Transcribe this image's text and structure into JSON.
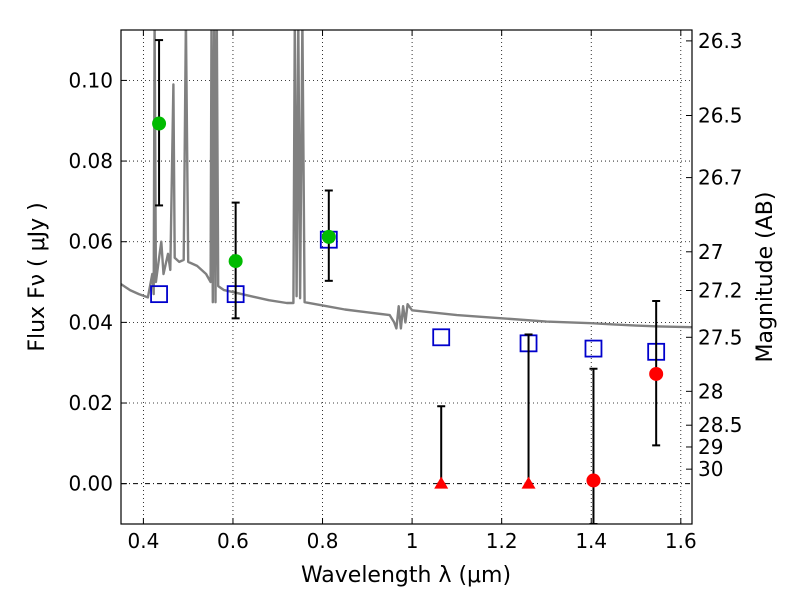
{
  "chart_data": {
    "type": "scatter",
    "xlabel": "Wavelength  λ (μm)",
    "ylabel": "Flux  Fν  ( μJy )",
    "y2label": "Magnitude (AB)",
    "xlim": [
      0.35,
      1.625
    ],
    "ylim": [
      -0.01,
      0.1125
    ],
    "grid": true,
    "x_ticks": [
      0.4,
      0.6,
      0.8,
      1.0,
      1.2,
      1.4,
      1.6
    ],
    "x_tick_labels": [
      "0.4",
      "0.6",
      "0.8",
      "1",
      "1.2",
      "1.4",
      "1.6"
    ],
    "y_ticks": [
      0.0,
      0.02,
      0.04,
      0.06,
      0.08,
      0.1
    ],
    "y_tick_labels": [
      "0.00",
      "0.02",
      "0.04",
      "0.06",
      "0.08",
      "0.10"
    ],
    "y2_ticks": [
      {
        "label": "26.3",
        "flux": 0.1098
      },
      {
        "label": "26.5",
        "flux": 0.0913
      },
      {
        "label": "26.7",
        "flux": 0.0759
      },
      {
        "label": "27",
        "flux": 0.0575
      },
      {
        "label": "27.2",
        "flux": 0.0479
      },
      {
        "label": "27.5",
        "flux": 0.0363
      },
      {
        "label": "28",
        "flux": 0.0229
      },
      {
        "label": "28.5",
        "flux": 0.0145
      },
      {
        "label": "29",
        "flux": 0.0091
      },
      {
        "label": "30",
        "flux": 0.0036
      }
    ],
    "series": [
      {
        "marker": "circle",
        "color": "#00bb00",
        "points": [
          {
            "x": 0.435,
            "y": 0.0893,
            "err_low": 0.069,
            "err_high": 0.11
          },
          {
            "x": 0.606,
            "y": 0.0552,
            "err_low": 0.041,
            "err_high": 0.0697
          },
          {
            "x": 0.814,
            "y": 0.0612,
            "err_low": 0.0503,
            "err_high": 0.0727
          }
        ]
      },
      {
        "marker": "circle",
        "color": "#ff0000",
        "points": [
          {
            "x": 1.405,
            "y": 0.0008,
            "err_low": -0.01,
            "err_high": 0.0285
          },
          {
            "x": 1.545,
            "y": 0.0272,
            "err_low": 0.0095,
            "err_high": 0.0453
          }
        ]
      },
      {
        "marker": "triangle",
        "color": "#ff0000",
        "points": [
          {
            "x": 1.065,
            "y": 0.0,
            "err_low": 0.0,
            "err_high": 0.0192
          },
          {
            "x": 1.26,
            "y": 0.0,
            "err_low": 0.0,
            "err_high": 0.037
          }
        ]
      },
      {
        "marker": "open-square",
        "color": "#0000cc",
        "points": [
          {
            "x": 0.435,
            "y": 0.047
          },
          {
            "x": 0.606,
            "y": 0.047
          },
          {
            "x": 0.814,
            "y": 0.0605
          },
          {
            "x": 1.065,
            "y": 0.0363
          },
          {
            "x": 1.26,
            "y": 0.0348
          },
          {
            "x": 1.405,
            "y": 0.0335
          },
          {
            "x": 1.545,
            "y": 0.0327
          }
        ]
      },
      {
        "marker": "line",
        "color": "#808080",
        "points": [
          {
            "x": 0.35,
            "y": 0.0495
          },
          {
            "x": 0.37,
            "y": 0.048
          },
          {
            "x": 0.39,
            "y": 0.047
          },
          {
            "x": 0.41,
            "y": 0.0462
          },
          {
            "x": 0.42,
            "y": 0.052
          },
          {
            "x": 0.423,
            "y": 0.047
          },
          {
            "x": 0.425,
            "y": 0.115
          },
          {
            "x": 0.428,
            "y": 0.05
          },
          {
            "x": 0.435,
            "y": 0.056
          },
          {
            "x": 0.44,
            "y": 0.06
          },
          {
            "x": 0.445,
            "y": 0.052
          },
          {
            "x": 0.455,
            "y": 0.057
          },
          {
            "x": 0.46,
            "y": 0.053
          },
          {
            "x": 0.467,
            "y": 0.099
          },
          {
            "x": 0.47,
            "y": 0.056
          },
          {
            "x": 0.48,
            "y": 0.055
          },
          {
            "x": 0.49,
            "y": 0.0555
          },
          {
            "x": 0.495,
            "y": 0.115
          },
          {
            "x": 0.5,
            "y": 0.055
          },
          {
            "x": 0.52,
            "y": 0.054
          },
          {
            "x": 0.54,
            "y": 0.052
          },
          {
            "x": 0.55,
            "y": 0.05
          },
          {
            "x": 0.552,
            "y": 0.115
          },
          {
            "x": 0.555,
            "y": 0.045
          },
          {
            "x": 0.558,
            "y": 0.115
          },
          {
            "x": 0.561,
            "y": 0.045
          },
          {
            "x": 0.564,
            "y": 0.115
          },
          {
            "x": 0.567,
            "y": 0.049
          },
          {
            "x": 0.58,
            "y": 0.048
          },
          {
            "x": 0.6,
            "y": 0.0475
          },
          {
            "x": 0.64,
            "y": 0.0465
          },
          {
            "x": 0.68,
            "y": 0.0455
          },
          {
            "x": 0.72,
            "y": 0.0448
          },
          {
            "x": 0.735,
            "y": 0.0448
          },
          {
            "x": 0.738,
            "y": 0.115
          },
          {
            "x": 0.742,
            "y": 0.0465
          },
          {
            "x": 0.746,
            "y": 0.115
          },
          {
            "x": 0.75,
            "y": 0.046
          },
          {
            "x": 0.755,
            "y": 0.115
          },
          {
            "x": 0.76,
            "y": 0.045
          },
          {
            "x": 0.8,
            "y": 0.0442
          },
          {
            "x": 0.85,
            "y": 0.0432
          },
          {
            "x": 0.9,
            "y": 0.0425
          },
          {
            "x": 0.95,
            "y": 0.0418
          },
          {
            "x": 0.96,
            "y": 0.04
          },
          {
            "x": 0.965,
            "y": 0.0385
          },
          {
            "x": 0.97,
            "y": 0.044
          },
          {
            "x": 0.975,
            "y": 0.0385
          },
          {
            "x": 0.98,
            "y": 0.044
          },
          {
            "x": 0.985,
            "y": 0.04
          },
          {
            "x": 0.99,
            "y": 0.0445
          },
          {
            "x": 1.0,
            "y": 0.043
          },
          {
            "x": 1.1,
            "y": 0.0418
          },
          {
            "x": 1.2,
            "y": 0.041
          },
          {
            "x": 1.3,
            "y": 0.0402
          },
          {
            "x": 1.4,
            "y": 0.0398
          },
          {
            "x": 1.45,
            "y": 0.0395
          },
          {
            "x": 1.5,
            "y": 0.0392
          },
          {
            "x": 1.55,
            "y": 0.039
          },
          {
            "x": 1.625,
            "y": 0.0388
          }
        ]
      }
    ]
  }
}
